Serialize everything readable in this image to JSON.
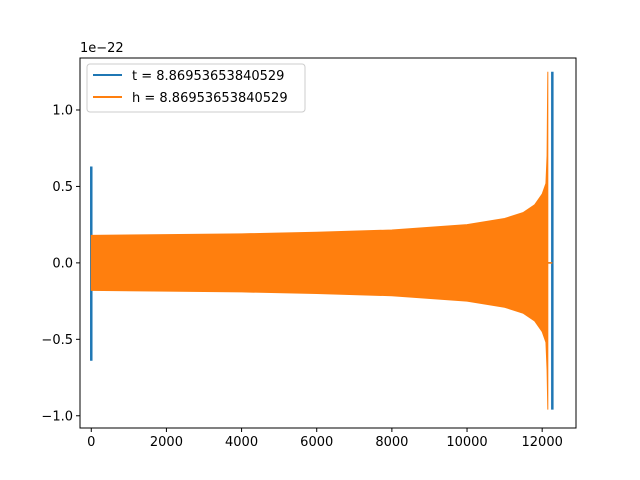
{
  "chart_data": {
    "type": "line",
    "title": "",
    "xlabel": "",
    "ylabel": "",
    "offset_text": "1e−22",
    "xlim": [
      -300,
      12900
    ],
    "ylim": [
      -1.08,
      1.34
    ],
    "x_ticks": [
      0,
      2000,
      4000,
      6000,
      8000,
      10000,
      12000
    ],
    "x_tick_labels": [
      "0",
      "2000",
      "4000",
      "6000",
      "8000",
      "10000",
      "12000"
    ],
    "y_ticks": [
      -1.0,
      -0.5,
      0.0,
      0.5,
      1.0
    ],
    "y_tick_labels": [
      "−1.0",
      "−0.5",
      "0.0",
      "0.5",
      "1.0"
    ],
    "grid": false,
    "legend_position": "top-left",
    "series": [
      {
        "name": "t = 8.86953653840529",
        "color": "#1f77b4",
        "spike_start": {
          "x": 0,
          "min": -0.64,
          "max": 0.63
        },
        "spike_end": {
          "x": 12270,
          "min": -0.96,
          "max": 1.25
        },
        "flat_start": 0,
        "flat_end": 12270
      },
      {
        "name": "h = 8.86953653840529",
        "color": "#ff7f0e",
        "envelope_x": [
          0,
          2000,
          4000,
          6000,
          8000,
          10000,
          11000,
          11500,
          11800,
          12000,
          12100,
          12130,
          12150
        ],
        "envelope_upper": [
          0.18,
          0.185,
          0.19,
          0.2,
          0.215,
          0.25,
          0.29,
          0.33,
          0.38,
          0.45,
          0.52,
          0.7,
          1.25
        ],
        "envelope_lower": [
          -0.18,
          -0.185,
          -0.19,
          -0.2,
          -0.215,
          -0.25,
          -0.29,
          -0.33,
          -0.38,
          -0.45,
          -0.52,
          -0.7,
          -0.96
        ],
        "tail_end_x": 12270
      }
    ]
  }
}
